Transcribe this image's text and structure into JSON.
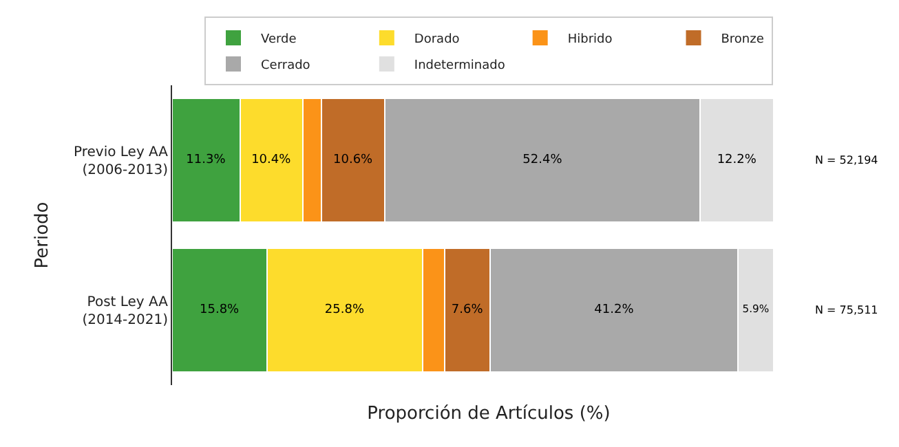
{
  "chart_data": {
    "type": "bar",
    "orientation": "horizontal",
    "stacked": true,
    "xlabel": "Proporción de Artículos (%)",
    "ylabel": "Periodo",
    "categories": [
      "Previo Ley AA\n(2006-2013)",
      "Post Ley AA\n(2014-2021)"
    ],
    "series": [
      {
        "name": "Verde",
        "color": "#3fa23f",
        "values": [
          11.3,
          15.8
        ],
        "value_labels": [
          "11.3%",
          "15.8%"
        ]
      },
      {
        "name": "Dorado",
        "color": "#fddc2c",
        "values": [
          10.4,
          25.8
        ],
        "value_labels": [
          "10.4%",
          "25.8%"
        ]
      },
      {
        "name": "Hibrido",
        "color": "#fb9318",
        "values": [
          3.1,
          3.7
        ],
        "value_labels": [
          null,
          null
        ]
      },
      {
        "name": "Bronze",
        "color": "#c06c28",
        "values": [
          10.6,
          7.6
        ],
        "value_labels": [
          "10.6%",
          "7.6%"
        ]
      },
      {
        "name": "Cerrado",
        "color": "#a9a9a9",
        "values": [
          52.4,
          41.2
        ],
        "value_labels": [
          "52.4%",
          "41.2%"
        ]
      },
      {
        "name": "Indeterminado",
        "color": "#e0e0e0",
        "values": [
          12.2,
          5.9
        ],
        "value_labels": [
          "12.2%",
          "5.9%"
        ]
      }
    ],
    "annotations": [
      "N = 52,194",
      "N = 75,511"
    ],
    "legend": "top"
  }
}
